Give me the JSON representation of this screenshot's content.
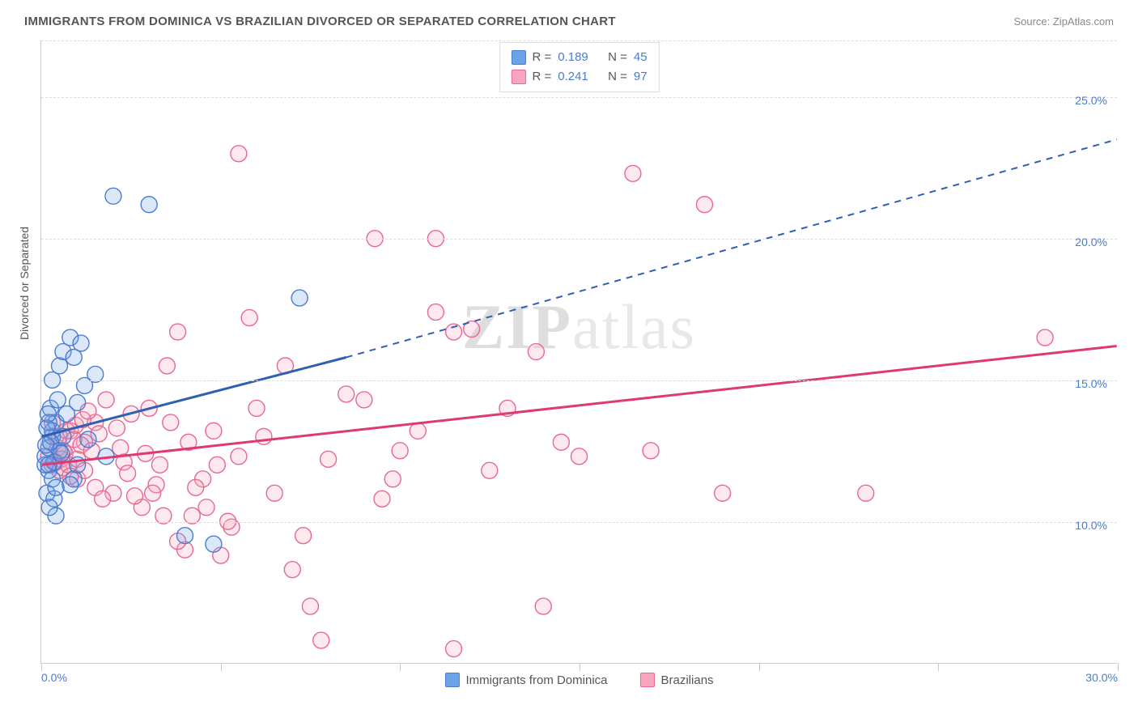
{
  "title": "IMMIGRANTS FROM DOMINICA VS BRAZILIAN DIVORCED OR SEPARATED CORRELATION CHART",
  "source": "Source: ZipAtlas.com",
  "watermark_a": "ZIP",
  "watermark_b": "atlas",
  "ylabel": "Divorced or Separated",
  "chart": {
    "type": "scatter",
    "xlim": [
      0,
      30
    ],
    "ylim": [
      5,
      27
    ],
    "yticks": [
      10,
      15,
      20,
      25
    ],
    "ytick_labels": [
      "10.0%",
      "15.0%",
      "20.0%",
      "25.0%"
    ],
    "xtick_positions": [
      0,
      5,
      10,
      15,
      20,
      25,
      30
    ],
    "xtick_end_labels": {
      "left": "0.0%",
      "right": "30.0%"
    },
    "marker_radius": 10,
    "marker_fill_opacity": 0.25,
    "marker_stroke_width": 1.4,
    "grid_color": "#dddddd",
    "axis_color": "#cccccc",
    "background_color": "#ffffff",
    "tick_label_color": "#4a7bd0",
    "text_color": "#555555"
  },
  "series": {
    "blue": {
      "label": "Immigrants from Dominica",
      "color": "#6aa3e8",
      "stroke": "#4a7bd0",
      "line_color": "#2d5fb3",
      "R": "0.189",
      "N": "45",
      "trend": {
        "x1": 0,
        "y1": 13.0,
        "x2_solid": 8.5,
        "y2_solid": 15.8,
        "x2_dash": 30,
        "y2_dash": 23.5
      },
      "points": [
        [
          0.1,
          12.0
        ],
        [
          0.1,
          12.3
        ],
        [
          0.2,
          12.6
        ],
        [
          0.15,
          11.0
        ],
        [
          0.2,
          11.8
        ],
        [
          0.3,
          13.0
        ],
        [
          0.4,
          13.5
        ],
        [
          0.25,
          14.0
        ],
        [
          0.3,
          15.0
        ],
        [
          0.5,
          15.5
        ],
        [
          0.6,
          16.0
        ],
        [
          0.8,
          16.5
        ],
        [
          0.4,
          10.2
        ],
        [
          0.9,
          11.5
        ],
        [
          1.0,
          14.2
        ],
        [
          1.2,
          14.8
        ],
        [
          1.5,
          15.2
        ],
        [
          0.3,
          13.2
        ],
        [
          0.5,
          12.5
        ],
        [
          0.7,
          13.8
        ],
        [
          1.0,
          12.0
        ],
        [
          0.2,
          13.5
        ],
        [
          0.35,
          12.1
        ],
        [
          0.45,
          14.3
        ],
        [
          0.6,
          13.0
        ],
        [
          0.55,
          12.4
        ],
        [
          0.8,
          11.3
        ],
        [
          1.1,
          16.3
        ],
        [
          1.3,
          12.9
        ],
        [
          1.8,
          12.3
        ],
        [
          0.9,
          15.8
        ],
        [
          2.0,
          21.5
        ],
        [
          3.0,
          21.2
        ],
        [
          4.0,
          9.5
        ],
        [
          4.8,
          9.2
        ],
        [
          7.2,
          17.9
        ],
        [
          0.15,
          13.3
        ],
        [
          0.2,
          12.0
        ],
        [
          0.25,
          12.8
        ],
        [
          0.3,
          11.5
        ],
        [
          0.35,
          10.8
        ],
        [
          0.4,
          11.2
        ],
        [
          0.22,
          10.5
        ],
        [
          0.18,
          13.8
        ],
        [
          0.12,
          12.7
        ]
      ]
    },
    "pink": {
      "label": "Brazilians",
      "color": "#f7a6bd",
      "stroke": "#e86791",
      "line_color": "#e03875",
      "R": "0.241",
      "N": "97",
      "trend": {
        "x1": 0,
        "y1": 12.0,
        "x2": 30,
        "y2": 16.2
      },
      "points": [
        [
          0.3,
          12.0
        ],
        [
          0.4,
          13.0
        ],
        [
          0.5,
          11.8
        ],
        [
          0.6,
          12.5
        ],
        [
          0.8,
          13.2
        ],
        [
          1.0,
          11.5
        ],
        [
          1.2,
          12.8
        ],
        [
          1.5,
          13.5
        ],
        [
          1.8,
          14.3
        ],
        [
          2.0,
          11.0
        ],
        [
          2.3,
          12.1
        ],
        [
          2.5,
          13.8
        ],
        [
          2.8,
          10.5
        ],
        [
          3.0,
          14.0
        ],
        [
          3.2,
          11.3
        ],
        [
          3.5,
          15.5
        ],
        [
          3.8,
          16.7
        ],
        [
          4.0,
          9.0
        ],
        [
          4.2,
          10.2
        ],
        [
          4.5,
          11.5
        ],
        [
          4.8,
          13.2
        ],
        [
          5.0,
          8.8
        ],
        [
          5.3,
          9.8
        ],
        [
          5.5,
          12.3
        ],
        [
          5.8,
          17.2
        ],
        [
          5.5,
          23.0
        ],
        [
          6.0,
          14.0
        ],
        [
          6.2,
          13.0
        ],
        [
          6.5,
          11.0
        ],
        [
          6.8,
          15.5
        ],
        [
          7.0,
          8.3
        ],
        [
          7.3,
          9.5
        ],
        [
          7.5,
          7.0
        ],
        [
          7.8,
          5.8
        ],
        [
          8.0,
          12.2
        ],
        [
          8.5,
          14.5
        ],
        [
          9.0,
          14.3
        ],
        [
          9.3,
          20.0
        ],
        [
          9.5,
          10.8
        ],
        [
          9.8,
          11.5
        ],
        [
          10.0,
          12.5
        ],
        [
          10.5,
          13.2
        ],
        [
          11.0,
          20.0
        ],
        [
          11.5,
          5.5
        ],
        [
          11.5,
          16.7
        ],
        [
          12.0,
          16.8
        ],
        [
          13.8,
          16.0
        ],
        [
          11.0,
          17.4
        ],
        [
          12.5,
          11.8
        ],
        [
          13.0,
          14.0
        ],
        [
          14.0,
          7.0
        ],
        [
          14.5,
          12.8
        ],
        [
          15.0,
          12.3
        ],
        [
          17.0,
          12.5
        ],
        [
          16.5,
          22.3
        ],
        [
          18.5,
          21.2
        ],
        [
          19.0,
          11.0
        ],
        [
          23.0,
          11.0
        ],
        [
          28.0,
          16.5
        ],
        [
          0.2,
          12.3
        ],
        [
          0.25,
          12.8
        ],
        [
          0.3,
          13.5
        ],
        [
          0.4,
          12.1
        ],
        [
          0.45,
          12.6
        ],
        [
          0.5,
          13.0
        ],
        [
          0.55,
          12.2
        ],
        [
          0.6,
          11.9
        ],
        [
          0.65,
          12.4
        ],
        [
          0.7,
          13.2
        ],
        [
          0.75,
          12.0
        ],
        [
          0.8,
          11.6
        ],
        [
          0.9,
          12.9
        ],
        [
          0.95,
          13.4
        ],
        [
          1.0,
          12.2
        ],
        [
          1.1,
          12.7
        ],
        [
          1.15,
          13.6
        ],
        [
          1.2,
          11.8
        ],
        [
          1.3,
          13.9
        ],
        [
          1.4,
          12.5
        ],
        [
          1.5,
          11.2
        ],
        [
          1.6,
          13.1
        ],
        [
          1.7,
          10.8
        ],
        [
          2.1,
          13.3
        ],
        [
          2.2,
          12.6
        ],
        [
          2.4,
          11.7
        ],
        [
          2.6,
          10.9
        ],
        [
          2.9,
          12.4
        ],
        [
          3.1,
          11.0
        ],
        [
          3.3,
          12.0
        ],
        [
          3.4,
          10.2
        ],
        [
          3.6,
          13.5
        ],
        [
          3.8,
          9.3
        ],
        [
          4.1,
          12.8
        ],
        [
          4.3,
          11.2
        ],
        [
          4.6,
          10.5
        ],
        [
          4.9,
          12.0
        ],
        [
          5.2,
          10.0
        ]
      ]
    }
  },
  "stats_labels": {
    "R": "R =",
    "N": "N ="
  }
}
